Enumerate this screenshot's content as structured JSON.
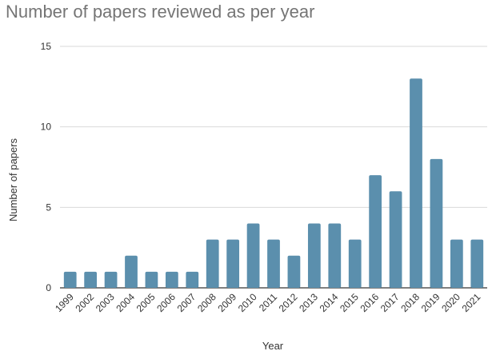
{
  "chart_data": {
    "type": "bar",
    "title": "Number of papers reviewed as per year",
    "xlabel": "Year",
    "ylabel": "Number of papers",
    "categories": [
      "1999",
      "2002",
      "2003",
      "2004",
      "2005",
      "2006",
      "2007",
      "2008",
      "2009",
      "2010",
      "2011",
      "2012",
      "2013",
      "2014",
      "2015",
      "2016",
      "2017",
      "2018",
      "2019",
      "2020",
      "2021"
    ],
    "values": [
      1,
      1,
      1,
      2,
      1,
      1,
      1,
      3,
      3,
      4,
      3,
      2,
      4,
      4,
      3,
      7,
      6,
      13,
      8,
      3,
      3
    ],
    "ylim": [
      0,
      15
    ],
    "yticks": [
      0,
      5,
      10,
      15
    ],
    "grid": true,
    "legend": "none",
    "colors": {
      "bar": "#5b8fad",
      "grid": "#d9d9d9",
      "axis": "#333333",
      "title": "#757575"
    }
  }
}
